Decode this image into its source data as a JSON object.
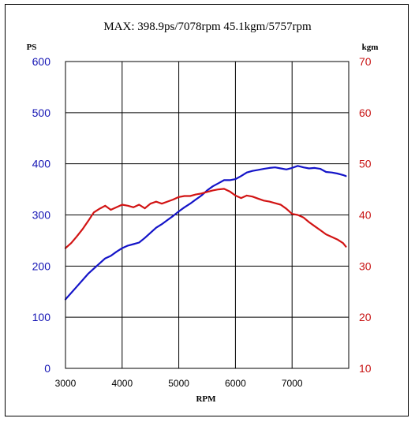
{
  "chart_data": {
    "type": "line",
    "title": "MAX: 398.9ps/7078rpm   45.1kgm/5757rpm",
    "xlabel": "RPM",
    "ylabel_left": "PS",
    "ylabel_right": "kgm",
    "xlim": [
      3000,
      8000
    ],
    "ylim_left": [
      0,
      600
    ],
    "ylim_right": [
      10,
      70
    ],
    "x_ticks": [
      "3000",
      "4000",
      "5000",
      "6000",
      "7000"
    ],
    "y_ticks_left": [
      "0",
      "100",
      "200",
      "300",
      "400",
      "500",
      "600"
    ],
    "y_ticks_right": [
      "10",
      "20",
      "30",
      "40",
      "50",
      "60",
      "70"
    ],
    "grid": true,
    "colors": {
      "power": "#1414c8",
      "torque": "#d21414"
    },
    "series": [
      {
        "axis": "left",
        "color": "#1414c8",
        "x": [
          3000,
          3200,
          3400,
          3600,
          3700,
          3800,
          3900,
          4000,
          4100,
          4200,
          4300,
          4400,
          4500,
          4600,
          4700,
          4800,
          4900,
          5000,
          5100,
          5200,
          5300,
          5400,
          5500,
          5600,
          5700,
          5800,
          5900,
          6000,
          6100,
          6200,
          6300,
          6400,
          6500,
          6600,
          6700,
          6800,
          6900,
          7000,
          7100,
          7200,
          7300,
          7400,
          7500,
          7600,
          7700,
          7800,
          7900,
          7950
        ],
        "values": [
          135,
          160,
          185,
          205,
          215,
          220,
          228,
          235,
          240,
          243,
          246,
          255,
          265,
          275,
          282,
          290,
          298,
          307,
          315,
          322,
          330,
          338,
          348,
          356,
          362,
          368,
          368,
          370,
          376,
          383,
          386,
          388,
          390,
          392,
          393,
          391,
          389,
          392,
          396,
          393,
          391,
          392,
          390,
          384,
          383,
          381,
          378,
          376
        ]
      },
      {
        "axis": "right",
        "color": "#d21414",
        "x": [
          3000,
          3100,
          3200,
          3300,
          3400,
          3500,
          3600,
          3700,
          3800,
          3900,
          4000,
          4100,
          4200,
          4300,
          4400,
          4500,
          4600,
          4700,
          4800,
          4900,
          5000,
          5100,
          5200,
          5300,
          5400,
          5500,
          5600,
          5700,
          5800,
          5900,
          6000,
          6100,
          6200,
          6300,
          6400,
          6500,
          6600,
          6700,
          6800,
          6900,
          7000,
          7100,
          7200,
          7300,
          7400,
          7500,
          7600,
          7700,
          7800,
          7900,
          7950
        ],
        "values": [
          33.5,
          34.5,
          35.8,
          37.2,
          38.8,
          40.5,
          41.2,
          41.8,
          41.0,
          41.5,
          42.0,
          41.8,
          41.5,
          42.0,
          41.3,
          42.2,
          42.6,
          42.2,
          42.6,
          43.0,
          43.5,
          43.7,
          43.7,
          44.0,
          44.2,
          44.5,
          44.8,
          45.0,
          45.1,
          44.6,
          43.8,
          43.3,
          43.8,
          43.6,
          43.2,
          42.8,
          42.6,
          42.3,
          42.0,
          41.2,
          40.2,
          40.0,
          39.5,
          38.6,
          37.8,
          37.0,
          36.2,
          35.7,
          35.2,
          34.5,
          33.8
        ]
      }
    ]
  }
}
